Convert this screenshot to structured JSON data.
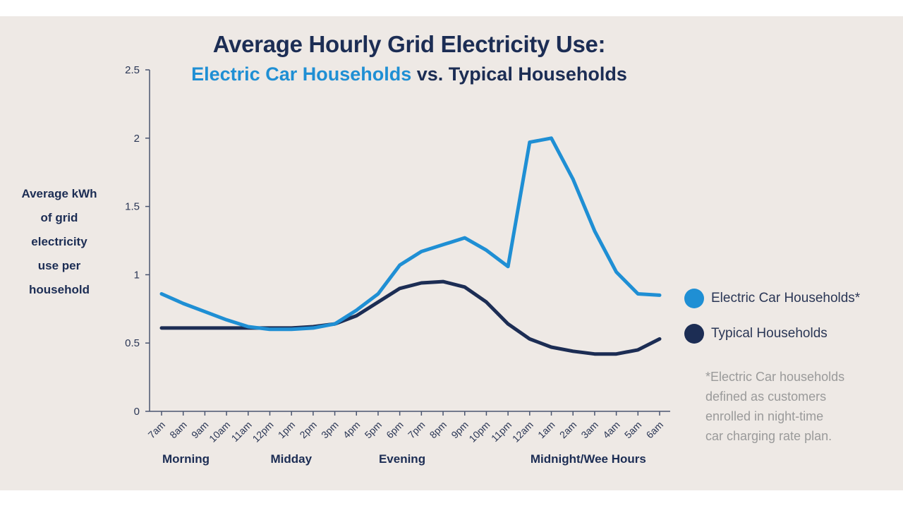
{
  "colors": {
    "ev": "#1f8fd4",
    "typical": "#1c2d54",
    "background": "#eee9e5"
  },
  "title": {
    "line1": "Average Hourly Grid Electricity Use:",
    "line2_highlight": "Electric Car Households",
    "line2_rest": " vs. Typical Households"
  },
  "ylabel_lines": [
    "Average kWh",
    "of grid",
    "electricity",
    "use per",
    "household"
  ],
  "legend": {
    "ev": "Electric Car Households*",
    "typical": "Typical Households"
  },
  "footnote_lines": [
    "*Electric Car households",
    "defined as customers",
    "enrolled in night-time",
    "car charging rate plan."
  ],
  "chart_data": {
    "type": "line",
    "title": "Average Hourly Grid Electricity Use: Electric Car Households vs. Typical Households",
    "ylabel": "Average kWh of grid electricity use per household",
    "xlabel": "",
    "ylim": [
      0,
      2.5
    ],
    "yticks": [
      0,
      0.5,
      1,
      1.5,
      2,
      2.5
    ],
    "ytick_labels": [
      "0",
      "0.5",
      "1",
      "1.5",
      "2",
      "2.5"
    ],
    "categories": [
      "7am",
      "8am",
      "9am",
      "10am",
      "11am",
      "12pm",
      "1pm",
      "2pm",
      "3pm",
      "4pm",
      "5pm",
      "6pm",
      "7pm",
      "8pm",
      "9pm",
      "10pm",
      "11pm",
      "12am",
      "1am",
      "2am",
      "3am",
      "4am",
      "5am",
      "6am"
    ],
    "series": [
      {
        "name": "Electric Car Households*",
        "values": [
          0.86,
          0.79,
          0.73,
          0.67,
          0.62,
          0.6,
          0.6,
          0.61,
          0.64,
          0.74,
          0.86,
          1.07,
          1.17,
          1.22,
          1.27,
          1.18,
          1.06,
          1.97,
          2.0,
          1.7,
          1.32,
          1.02,
          0.86,
          0.85
        ]
      },
      {
        "name": "Typical Households",
        "values": [
          0.61,
          0.61,
          0.61,
          0.61,
          0.61,
          0.61,
          0.61,
          0.62,
          0.64,
          0.7,
          0.8,
          0.9,
          0.94,
          0.95,
          0.91,
          0.8,
          0.64,
          0.53,
          0.47,
          0.44,
          0.42,
          0.42,
          0.45,
          0.53
        ]
      }
    ],
    "periods": [
      {
        "label": "Morning",
        "at": "7am"
      },
      {
        "label": "Midday",
        "at": "12pm"
      },
      {
        "label": "Evening",
        "at": "5pm"
      },
      {
        "label": "Midnight/Wee Hours",
        "at": "12am"
      }
    ]
  }
}
